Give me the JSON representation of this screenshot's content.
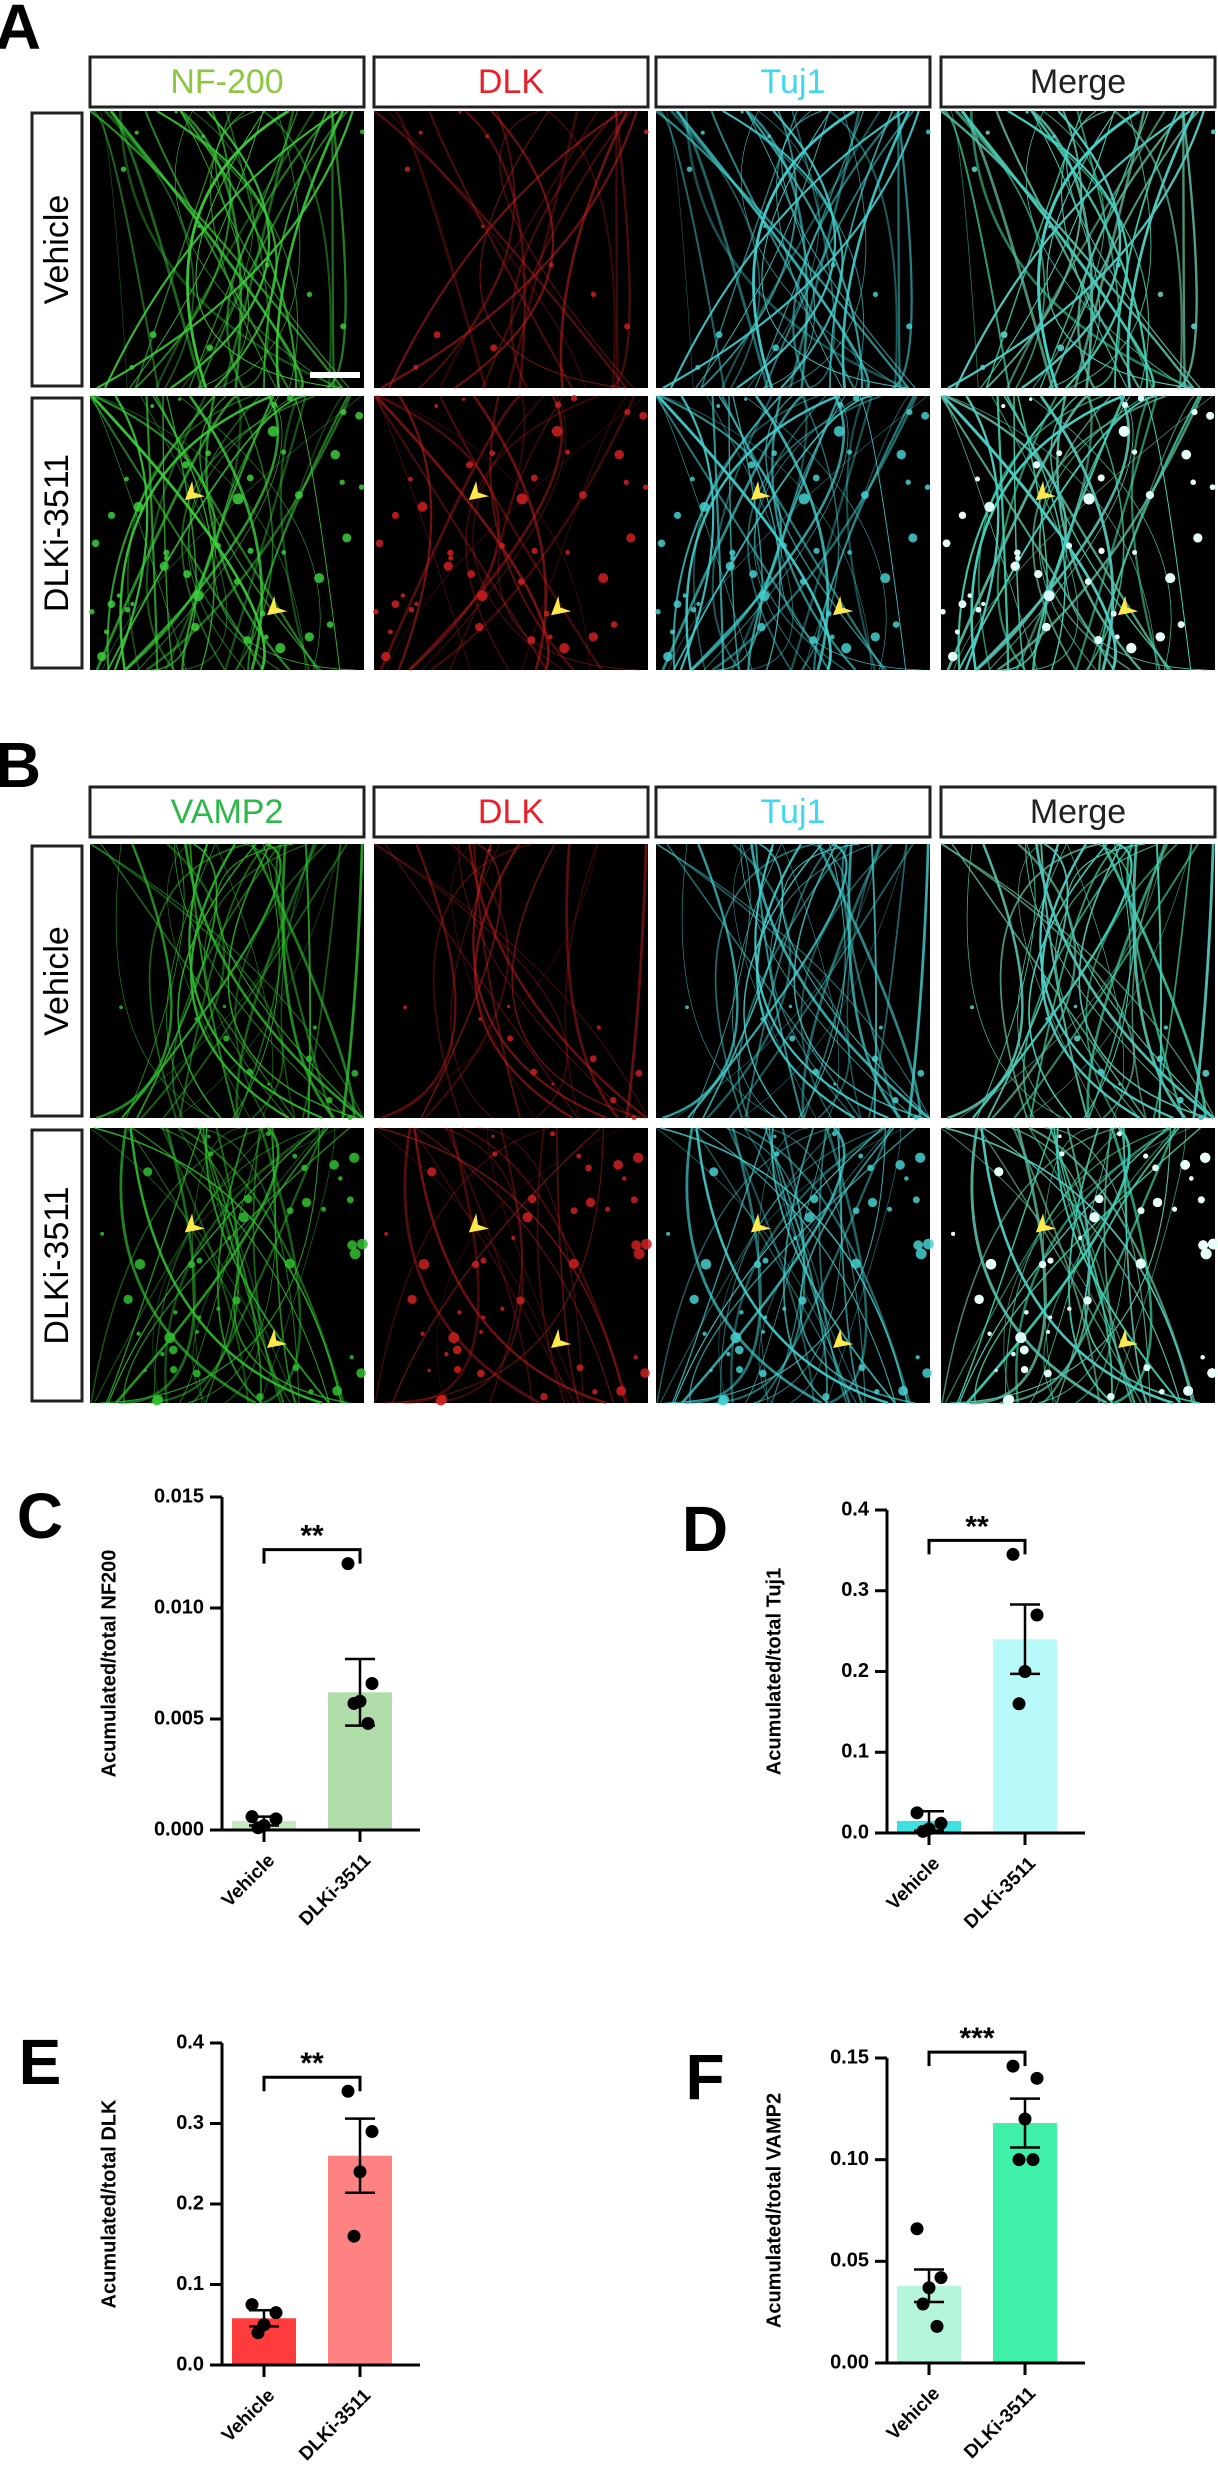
{
  "panels": [
    {
      "label": "A",
      "columns": [
        "NF-200",
        "DLK",
        "Tuj1",
        "Merge"
      ],
      "column_colors": [
        "#8dc63f",
        "#e8202a",
        "#3fd8f0",
        "#222222"
      ],
      "rows": [
        "Vehicle",
        "DLKi-3511"
      ]
    },
    {
      "label": "B",
      "columns": [
        "VAMP2",
        "DLK",
        "Tuj1",
        "Merge"
      ],
      "column_colors": [
        "#2db84a",
        "#e8202a",
        "#3fd8f0",
        "#222222"
      ],
      "rows": [
        "Vehicle",
        "DLKi-3511"
      ]
    }
  ],
  "chart_data": [
    {
      "type": "bar",
      "panel_label": "C",
      "y_label": "Acumulated/total NF200",
      "categories": [
        "Vehicle",
        "DLKi-3511"
      ],
      "values": [
        0.0004,
        0.0062
      ],
      "errors": [
        0.0002,
        0.0015
      ],
      "points": [
        [
          0.0006,
          0.0005,
          0.0002,
          0.0001
        ],
        [
          0.012,
          0.0066,
          0.0058,
          0.0057,
          0.0048
        ]
      ],
      "colors": [
        "#c5e8c0",
        "#b0ddaa"
      ],
      "significance": "**",
      "ylim": [
        0,
        0.015
      ],
      "yticks": [
        {
          "value": 0,
          "label": "0.000"
        },
        {
          "value": 0.005,
          "label": "0.005"
        },
        {
          "value": 0.01,
          "label": "0.010"
        },
        {
          "value": 0.015,
          "label": "0.015"
        }
      ]
    },
    {
      "type": "bar",
      "panel_label": "D",
      "y_label": "Acumulated/total Tuj1",
      "categories": [
        "Vehicle",
        "DLKi-3511"
      ],
      "values": [
        0.015,
        0.24
      ],
      "errors": [
        0.012,
        0.043
      ],
      "points": [
        [
          0.025,
          0.012,
          0.005,
          0.002
        ],
        [
          0.345,
          0.27,
          0.2,
          0.16
        ]
      ],
      "colors": [
        "#3fe0e0",
        "#b8fafa"
      ],
      "significance": "**",
      "ylim": [
        0,
        0.4
      ],
      "yticks": [
        {
          "value": 0,
          "label": "0.0"
        },
        0.1,
        0.2,
        0.3,
        0.4
      ]
    },
    {
      "type": "bar",
      "panel_label": "E",
      "y_label": "Acumulated/total DLK",
      "categories": [
        "Vehicle",
        "DLKi-3511"
      ],
      "values": [
        0.058,
        0.26
      ],
      "errors": [
        0.01,
        0.046
      ],
      "points": [
        [
          0.075,
          0.065,
          0.05,
          0.04
        ],
        [
          0.34,
          0.29,
          0.24,
          0.16
        ]
      ],
      "colors": [
        "#ff3b3b",
        "#ff8282"
      ],
      "significance": "**",
      "ylim": [
        0,
        0.4
      ],
      "yticks": [
        {
          "value": 0,
          "label": "0.0"
        },
        0.1,
        0.2,
        0.3,
        0.4
      ]
    },
    {
      "type": "bar",
      "panel_label": "F",
      "y_label": "Acumulated/total VAMP2",
      "categories": [
        "Vehicle",
        "DLKi-3511"
      ],
      "values": [
        0.038,
        0.118
      ],
      "errors": [
        0.008,
        0.012
      ],
      "points": [
        [
          0.066,
          0.042,
          0.037,
          0.029,
          0.018
        ],
        [
          0.146,
          0.14,
          0.12,
          0.1,
          0.1
        ]
      ],
      "colors": [
        "#b5f5dc",
        "#3ef0a8"
      ],
      "significance": "***",
      "ylim": [
        0,
        0.15
      ],
      "yticks": [
        {
          "value": 0,
          "label": "0.00"
        },
        0.05,
        {
          "value": 0.1,
          "label": "0.10"
        },
        0.15
      ]
    }
  ]
}
